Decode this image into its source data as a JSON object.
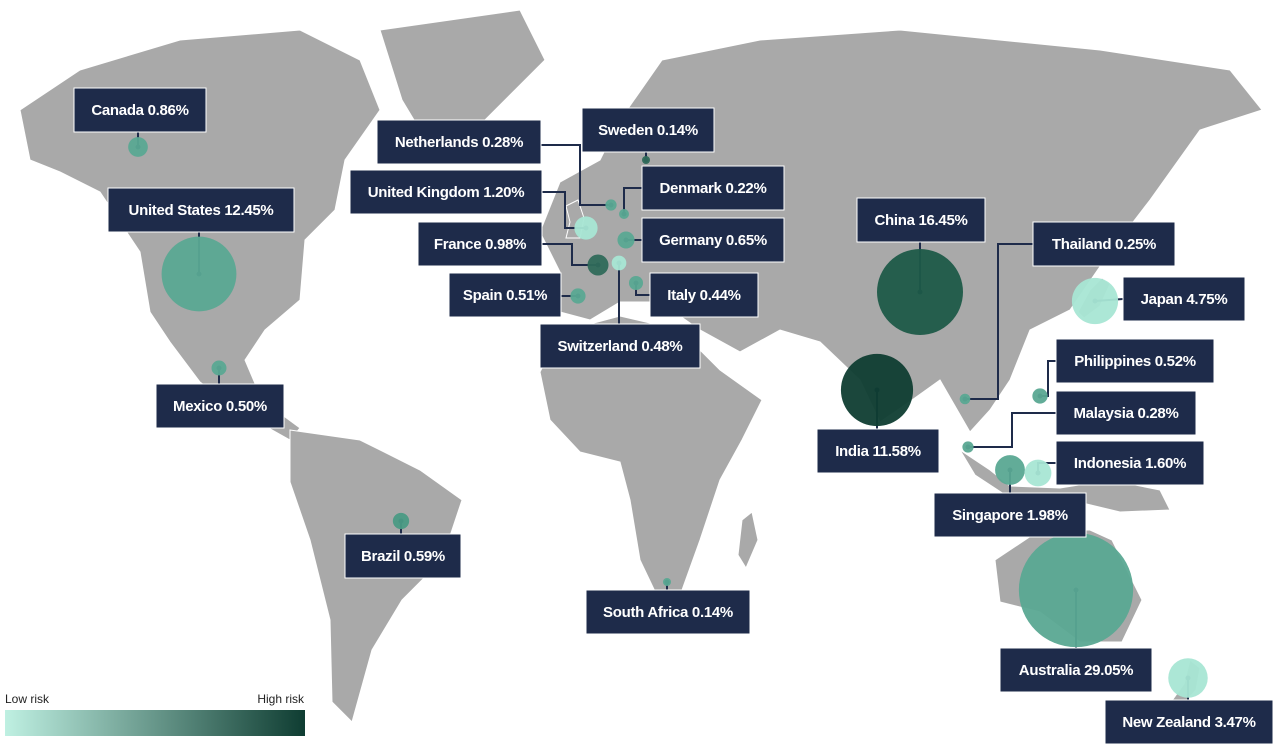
{
  "chart_data": {
    "type": "bubble_map",
    "legend": {
      "low": "Low risk",
      "high": "High risk",
      "low_color": "#bff0e2",
      "high_color": "#0f3d32"
    },
    "points": [
      {
        "label": "Canada 0.86%",
        "value": 0.86,
        "color": "#5aa892"
      },
      {
        "label": "United States 12.45%",
        "value": 12.45,
        "color": "#5aa892"
      },
      {
        "label": "Mexico 0.50%",
        "value": 0.5,
        "color": "#5aa892"
      },
      {
        "label": "Brazil 0.59%",
        "value": 0.59,
        "color": "#4a9a84"
      },
      {
        "label": "South Africa 0.14%",
        "value": 0.14,
        "color": "#5aa892"
      },
      {
        "label": "Netherlands 0.28%",
        "value": 0.28,
        "color": "#5aa892"
      },
      {
        "label": "Sweden 0.14%",
        "value": 0.14,
        "color": "#2f6a5a"
      },
      {
        "label": "United Kingdom 1.20%",
        "value": 1.2,
        "color": "#a8e6d4"
      },
      {
        "label": "Denmark 0.22%",
        "value": 0.22,
        "color": "#5aa892"
      },
      {
        "label": "France 0.98%",
        "value": 0.98,
        "color": "#2f6a5a"
      },
      {
        "label": "Germany 0.65%",
        "value": 0.65,
        "color": "#5aa892"
      },
      {
        "label": "Spain 0.51%",
        "value": 0.51,
        "color": "#5aa892"
      },
      {
        "label": "Italy 0.44%",
        "value": 0.44,
        "color": "#5aa892"
      },
      {
        "label": "Switzerland 0.48%",
        "value": 0.48,
        "color": "#a8e6d4"
      },
      {
        "label": "China 16.45%",
        "value": 16.45,
        "color": "#1e5a48"
      },
      {
        "label": "Thailand 0.25%",
        "value": 0.25,
        "color": "#5aa892"
      },
      {
        "label": "Japan 4.75%",
        "value": 4.75,
        "color": "#a8e6d4"
      },
      {
        "label": "India 11.58%",
        "value": 11.58,
        "color": "#0f3d32"
      },
      {
        "label": "Philippines 0.52%",
        "value": 0.52,
        "color": "#5aa892"
      },
      {
        "label": "Malaysia 0.28%",
        "value": 0.28,
        "color": "#5aa892"
      },
      {
        "label": "Indonesia 1.60%",
        "value": 1.6,
        "color": "#a8e6d4"
      },
      {
        "label": "Singapore 1.98%",
        "value": 1.98,
        "color": "#5aa892"
      },
      {
        "label": "Australia 29.05%",
        "value": 29.05,
        "color": "#5aa892"
      },
      {
        "label": "New Zealand 3.47%",
        "value": 3.47,
        "color": "#a8e6d4"
      }
    ]
  }
}
